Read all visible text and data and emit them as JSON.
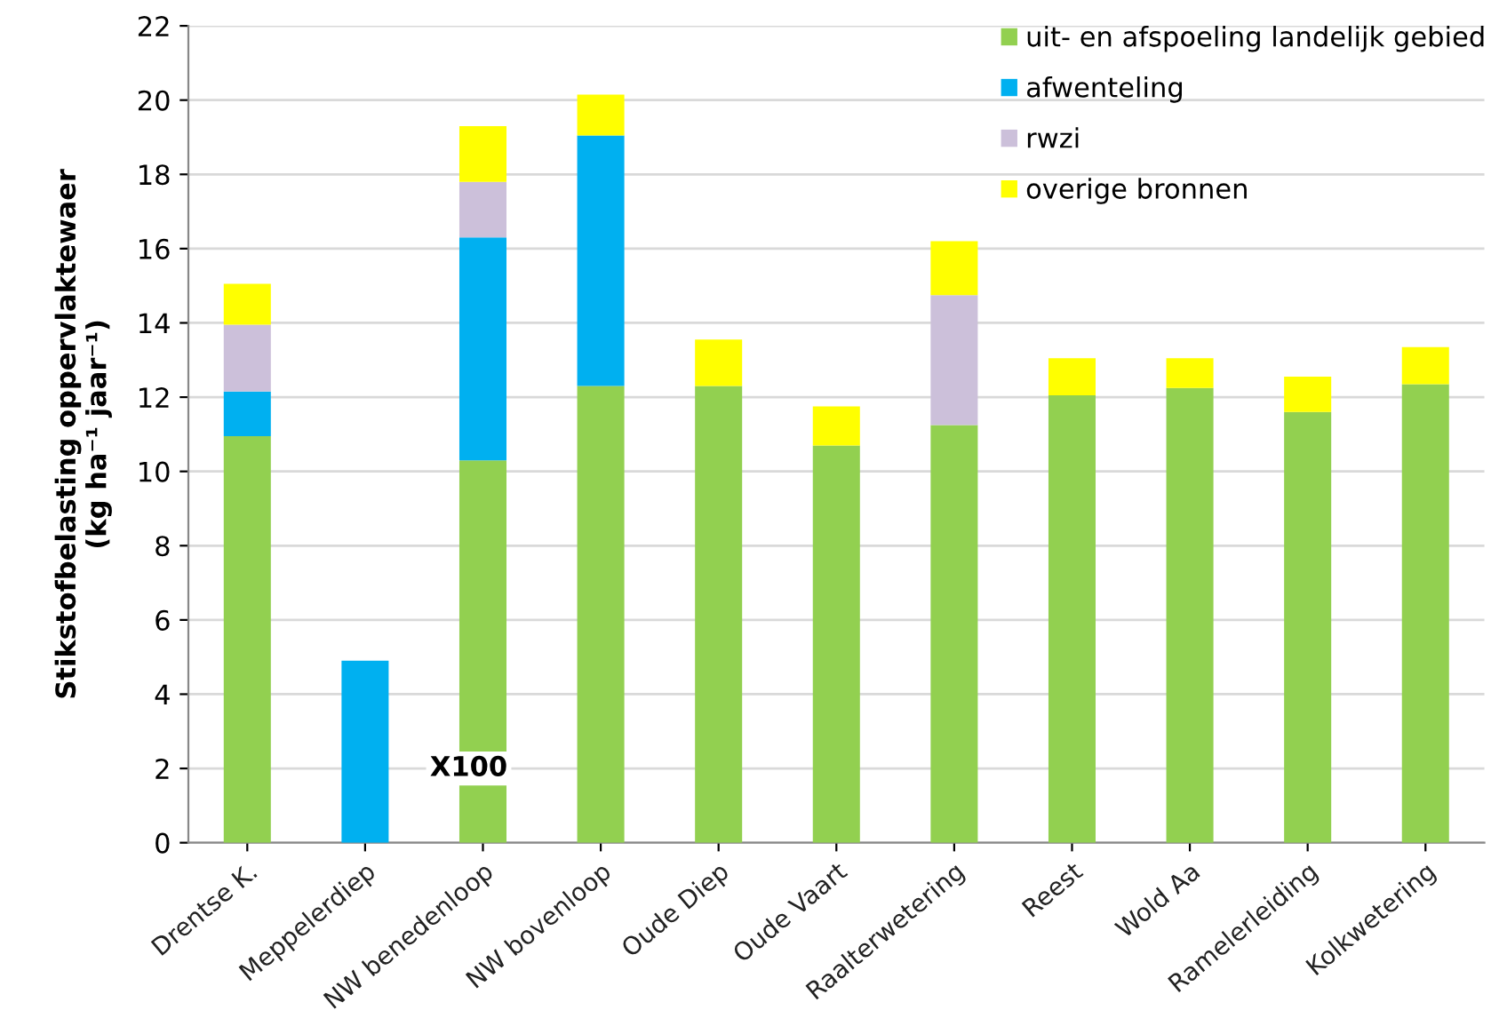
{
  "chart_data": {
    "type": "bar",
    "stacked": true,
    "ylabel": "Stikstofbelasting oppervlaktewaer\n(kg ha⁻¹ jaar⁻¹)",
    "categories": [
      "Drentse K.",
      "Meppelerdiep",
      "NW benedenloop",
      "NW bovenloop",
      "Oude Diep",
      "Oude Vaart",
      "Raalterwetering",
      "Reest",
      "Wold Aa",
      "Ramelerleiding",
      "Kolkwetering"
    ],
    "series": [
      {
        "name": "uit- en afspoeling landelijk gebied",
        "color": "#92d050",
        "values": [
          10.95,
          null,
          10.3,
          12.3,
          12.3,
          10.7,
          11.25,
          12.05,
          12.25,
          11.6,
          12.35
        ]
      },
      {
        "name": "afwenteling",
        "color": "#00b0f0",
        "values": [
          1.2,
          4.9,
          6.0,
          6.75,
          0,
          0,
          0,
          0,
          0,
          0,
          0
        ]
      },
      {
        "name": "rwzi",
        "color": "#ccc0da",
        "values": [
          1.8,
          0,
          1.5,
          0,
          0,
          0,
          3.5,
          0,
          0,
          0,
          0
        ]
      },
      {
        "name": "overige bronnen",
        "color": "#ffff00",
        "values": [
          1.1,
          0,
          1.5,
          1.1,
          1.25,
          1.05,
          1.45,
          1.0,
          0.8,
          0.95,
          1.0
        ]
      }
    ],
    "annotations": [
      "X100"
    ],
    "ylim": [
      0,
      22
    ],
    "yticks": [
      0,
      2,
      4,
      6,
      8,
      10,
      12,
      14,
      16,
      18,
      20,
      22
    ],
    "grid": "y",
    "legend": "top right"
  }
}
